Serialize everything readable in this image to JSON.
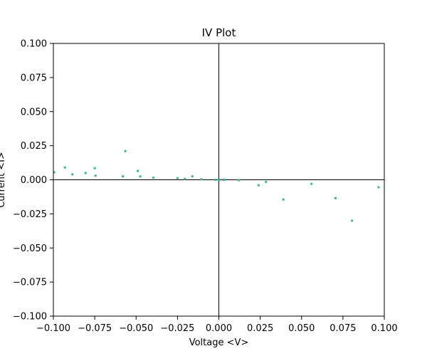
{
  "chart_data": {
    "type": "scatter",
    "title": "IV Plot",
    "xlabel": "Voltage <V>",
    "ylabel": "Current <I>",
    "xlim": [
      -0.1,
      0.1
    ],
    "ylim": [
      -0.1,
      0.1
    ],
    "x_ticks": [
      -0.1,
      -0.075,
      -0.05,
      -0.025,
      0.0,
      0.025,
      0.05,
      0.075,
      0.1
    ],
    "y_ticks": [
      -0.1,
      -0.075,
      -0.05,
      -0.025,
      0.0,
      0.025,
      0.05,
      0.075,
      0.1
    ],
    "x_tick_labels": [
      "−0.100",
      "−0.075",
      "−0.050",
      "−0.025",
      "0.000",
      "0.025",
      "0.050",
      "0.075",
      "0.100"
    ],
    "y_tick_labels": [
      "−0.100",
      "−0.075",
      "−0.050",
      "−0.025",
      "0.000",
      "0.025",
      "0.050",
      "0.075",
      "0.100"
    ],
    "zero_lines": true,
    "grid": false,
    "marker_color": "#3cb4a0",
    "series": [
      {
        "points": [
          [
            -0.0995,
            0.0055
          ],
          [
            -0.093,
            0.009
          ],
          [
            -0.0885,
            0.004
          ],
          [
            -0.0805,
            0.005
          ],
          [
            -0.075,
            0.0085
          ],
          [
            -0.0745,
            0.003
          ],
          [
            -0.058,
            0.0025
          ],
          [
            -0.0565,
            0.021
          ],
          [
            -0.049,
            0.0065
          ],
          [
            -0.0475,
            0.0025
          ],
          [
            -0.0395,
            0.0015
          ],
          [
            -0.025,
            0.0012
          ],
          [
            -0.0205,
            0.0007
          ],
          [
            -0.016,
            0.0025
          ],
          [
            -0.0105,
            0.0004
          ],
          [
            -0.002,
            0.0
          ],
          [
            0.0,
            0.0
          ],
          [
            0.003,
            0.0
          ],
          [
            0.012,
            -0.0003
          ],
          [
            0.024,
            -0.004
          ],
          [
            0.0285,
            -0.0015
          ],
          [
            0.039,
            -0.0145
          ],
          [
            0.056,
            -0.003
          ],
          [
            0.0705,
            -0.0135
          ],
          [
            0.0805,
            -0.03
          ],
          [
            0.0965,
            -0.0055
          ]
        ]
      }
    ]
  }
}
